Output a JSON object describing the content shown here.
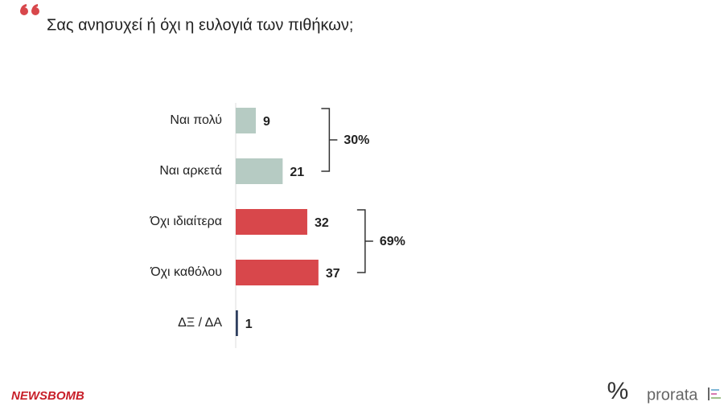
{
  "chart_data": {
    "type": "hbar",
    "title": "Σας ανησυχεί ή όχι η ευλογιά των πιθήκων;",
    "categories": [
      "Ναι πολύ",
      "Ναι αρκετά",
      "Όχι ιδιαίτερα",
      "Όχι καθόλου",
      "ΔΞ / ΔΑ"
    ],
    "values": [
      9,
      21,
      32,
      37,
      1
    ],
    "colors": [
      "#b6cbc3",
      "#b6cbc3",
      "#d8474b",
      "#d8474b",
      "#2f3f5f"
    ],
    "groups": [
      {
        "value": 30,
        "label": "30%",
        "categories": [
          "Ναι πολύ",
          "Ναι αρκετά"
        ]
      },
      {
        "value": 69,
        "label": "69%",
        "categories": [
          "Όχι ιδιαίτερα",
          "Όχι καθόλου"
        ]
      }
    ]
  },
  "footer": {
    "source": "NEWSBOMB",
    "logo_symbol": "%",
    "logo_text": "prorata"
  }
}
